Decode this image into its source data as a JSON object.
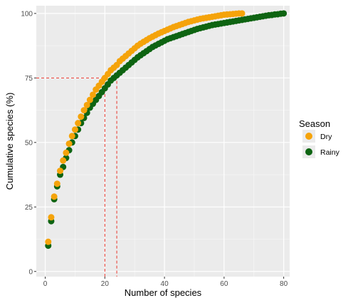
{
  "chart_data": {
    "type": "scatter",
    "xlabel": "Number of species",
    "ylabel": "Cumulative species (%)",
    "xlim": [
      -3,
      82
    ],
    "ylim": [
      -2,
      103
    ],
    "x_ticks": [
      0,
      20,
      40,
      60,
      80
    ],
    "y_ticks": [
      0,
      25,
      50,
      75,
      100
    ],
    "x_tick_labels": [
      "0",
      "20",
      "40",
      "60",
      "80"
    ],
    "y_tick_labels": [
      "0",
      "25",
      "50",
      "75",
      "100"
    ],
    "grid": true,
    "legend_position": "right",
    "legend_title": "Season",
    "series": [
      {
        "name": "Dry",
        "color": "#f5a30a",
        "x": [
          1,
          2,
          3,
          4,
          5,
          6,
          7,
          8,
          9,
          10,
          11,
          12,
          13,
          14,
          15,
          16,
          17,
          18,
          19,
          20,
          21,
          22,
          23,
          24,
          25,
          26,
          27,
          28,
          29,
          30,
          31,
          32,
          33,
          34,
          35,
          36,
          37,
          38,
          39,
          40,
          41,
          42,
          43,
          44,
          45,
          46,
          47,
          48,
          49,
          50,
          51,
          52,
          53,
          54,
          55,
          56,
          57,
          58,
          59,
          60,
          61,
          62,
          63,
          64,
          65,
          66
        ],
        "y": [
          11.5,
          21,
          29,
          34,
          39,
          43,
          46,
          49.5,
          52.5,
          55,
          57.5,
          60,
          62.5,
          64.5,
          66.5,
          68.5,
          70.5,
          72,
          73.5,
          75,
          76.5,
          78,
          79,
          80,
          81.5,
          82.5,
          83.5,
          84.5,
          85.5,
          86.5,
          87.5,
          88.3,
          89,
          89.7,
          90.4,
          91,
          91.6,
          92.2,
          92.7,
          93.2,
          93.7,
          94.2,
          94.7,
          95.1,
          95.5,
          95.9,
          96.3,
          96.7,
          97,
          97.3,
          97.6,
          97.9,
          98.1,
          98.3,
          98.5,
          98.7,
          98.9,
          99.1,
          99.3,
          99.5,
          99.6,
          99.7,
          99.8,
          99.9,
          100,
          100
        ]
      },
      {
        "name": "Rainy",
        "color": "#0e6412",
        "x": [
          1,
          2,
          3,
          4,
          5,
          6,
          7,
          8,
          9,
          10,
          11,
          12,
          13,
          14,
          15,
          16,
          17,
          18,
          19,
          20,
          21,
          22,
          23,
          24,
          25,
          26,
          27,
          28,
          29,
          30,
          31,
          32,
          33,
          34,
          35,
          36,
          37,
          38,
          39,
          40,
          41,
          42,
          43,
          44,
          45,
          46,
          47,
          48,
          49,
          50,
          51,
          52,
          53,
          54,
          55,
          56,
          57,
          58,
          59,
          60,
          61,
          62,
          63,
          64,
          65,
          66,
          67,
          68,
          69,
          70,
          71,
          72,
          73,
          74,
          75,
          76,
          77,
          78,
          79,
          80
        ],
        "y": [
          10,
          19.5,
          28,
          33,
          37.5,
          40.5,
          44,
          47,
          50,
          52.5,
          55,
          57.5,
          59.5,
          61.5,
          63.5,
          65,
          66.5,
          68,
          69.5,
          71,
          72.5,
          74,
          75,
          76,
          77,
          78,
          79,
          80,
          81,
          82,
          83,
          83.8,
          84.6,
          85.4,
          86.2,
          87,
          87.6,
          88.2,
          88.8,
          89.4,
          90,
          90.4,
          90.8,
          91.2,
          91.6,
          92,
          92.4,
          92.8,
          93.2,
          93.6,
          94,
          94.3,
          94.6,
          94.9,
          95.2,
          95.5,
          95.7,
          95.9,
          96.1,
          96.3,
          96.5,
          96.7,
          96.9,
          97.1,
          97.3,
          97.5,
          97.7,
          97.9,
          98.1,
          98.3,
          98.5,
          98.7,
          98.9,
          99.1,
          99.3,
          99.4,
          99.6,
          99.7,
          99.9,
          100
        ]
      }
    ],
    "reference_lines": [
      {
        "color": "#e8352a",
        "points": [
          [
            -3,
            75
          ],
          [
            20,
            75
          ],
          [
            20,
            -2
          ]
        ]
      },
      {
        "color": "#e8352a",
        "points": [
          [
            20,
            75
          ],
          [
            24,
            75
          ],
          [
            24,
            -2
          ]
        ]
      }
    ]
  }
}
